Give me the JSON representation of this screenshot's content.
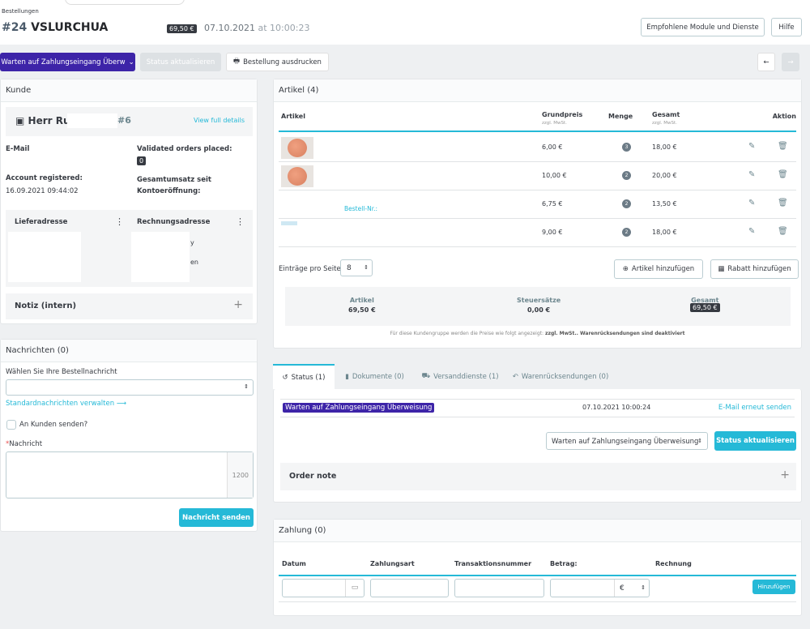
{
  "header": {
    "breadcrumb": "Bestellungen",
    "order_number": "#24",
    "order_ref": "VSLURCHUA",
    "total_badge": "69,50 €",
    "date": "07.10.2021",
    "at": "at",
    "time": "10:00:23",
    "recommended_button": "Empfohlene Module und Dienste",
    "help_button": "Hilfe"
  },
  "toolbar": {
    "status_dropdown": "Warten auf Zahlungseingang Überw",
    "update_status": "Status aktualisieren",
    "print_order": "Bestellung ausdrucken"
  },
  "customer": {
    "title": "Kunde",
    "name": "Herr Ru",
    "id": "#6",
    "view_details": "View full details",
    "email_label": "E-Mail",
    "validated_label": "Validated orders placed:",
    "validated_count": "0",
    "registered_label": "Account registered:",
    "registered_value": "16.09.2021 09:44:02",
    "revenue_label": "Gesamtumsatz seit Kontoeröffnung:",
    "delivery_label": "Lieferadresse",
    "billing_label": "Rechnungsadresse",
    "billing_fragment_1": "y",
    "billing_fragment_2": "en",
    "note_label": "Notiz (intern)"
  },
  "messages": {
    "title": "Nachrichten (0)",
    "select_label": "Wählen Sie Ihre Bestellnachricht",
    "manage_link": "Standardnachrichten verwalten",
    "send_to_customer": "An Kunden senden?",
    "required_mark": "*",
    "message_label": "Nachricht",
    "char_count": "1200",
    "send_button": "Nachricht senden"
  },
  "products": {
    "title": "Artikel (4)",
    "columns": {
      "article": "Artikel",
      "base_price": "Grundpreis",
      "base_price_sub": "zzgl. MwSt.",
      "quantity": "Menge",
      "total": "Gesamt",
      "total_sub": "zzgl. MwSt.",
      "action": "Aktion"
    },
    "rows": [
      {
        "price": "6,00 €",
        "qty": "3",
        "total": "18,00 €"
      },
      {
        "price": "10,00 €",
        "qty": "2",
        "total": "20,00 €"
      },
      {
        "price": "6,75 €",
        "qty": "2",
        "total": "13,50 €",
        "ref_label": "Bestell-Nr.:"
      },
      {
        "price": "9,00 €",
        "qty": "2",
        "total": "18,00 €"
      }
    ],
    "per_page_label": "Einträge pro Seite",
    "per_page_value": "8",
    "add_product": "Artikel hinzufügen",
    "add_discount": "Rabatt hinzufügen",
    "summary": {
      "products_label": "Artikel",
      "products_value": "69,50 €",
      "taxes_label": "Steuersätze",
      "taxes_value": "0,00 €",
      "total_label": "Gesamt",
      "total_value": "69,50 €"
    },
    "footnote_prefix": "Für diese Kundengruppe werden die Preise wie folgt angezeigt:",
    "footnote_tax": "zzgl. MwSt.",
    "footnote_returns": ". Warenrücksendungen sind deaktiviert"
  },
  "tabs": [
    {
      "label": "Status (1)",
      "icon": "history-icon"
    },
    {
      "label": "Dokumente (0)",
      "icon": "file-icon"
    },
    {
      "label": "Versanddienste (1)",
      "icon": "truck-icon"
    },
    {
      "label": "Warenrücksendungen (0)",
      "icon": "undo-icon"
    }
  ],
  "status": {
    "current": "Warten auf Zahlungseingang Überweisung",
    "date": "07.10.2021 10:00:24",
    "resend_email": "E-Mail erneut senden",
    "select_value": "Warten auf Zahlungseingang Überweisung",
    "update_button": "Status aktualisieren",
    "order_note": "Order note"
  },
  "payment": {
    "title": "Zahlung (0)",
    "columns": [
      "Datum",
      "Zahlungsart",
      "Transaktionsnummer",
      "Betrag:",
      "Rechnung"
    ],
    "currency": "€",
    "add_button": "Hinzufügen"
  },
  "colors": {
    "accent": "#25b9d7",
    "status_purple": "#3d24a8",
    "dark_badge": "#363a41"
  }
}
